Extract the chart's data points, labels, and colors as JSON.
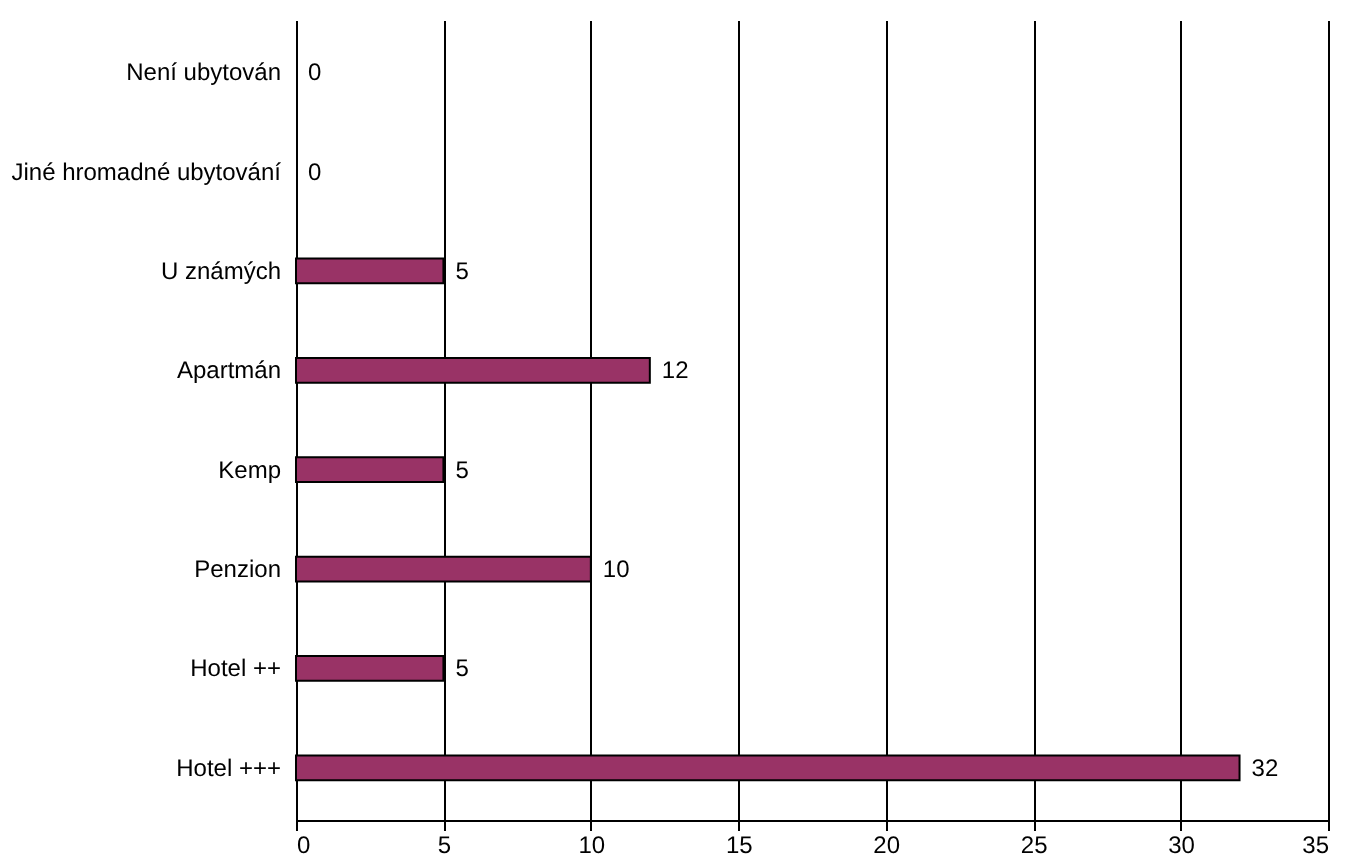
{
  "chart_data": {
    "type": "bar",
    "orientation": "horizontal",
    "categories": [
      "Není ubytován",
      "Jiné hromadné ubytování",
      "U známých",
      "Apartmán",
      "Kemp",
      "Penzion",
      "Hotel ++",
      "Hotel +++"
    ],
    "values": [
      0,
      0,
      5,
      12,
      5,
      10,
      5,
      32
    ],
    "color": "#993366",
    "xlim": [
      0,
      35
    ],
    "xticks": [
      0,
      5,
      10,
      15,
      20,
      25,
      30,
      35
    ],
    "grid": "x",
    "data_labels": true
  }
}
